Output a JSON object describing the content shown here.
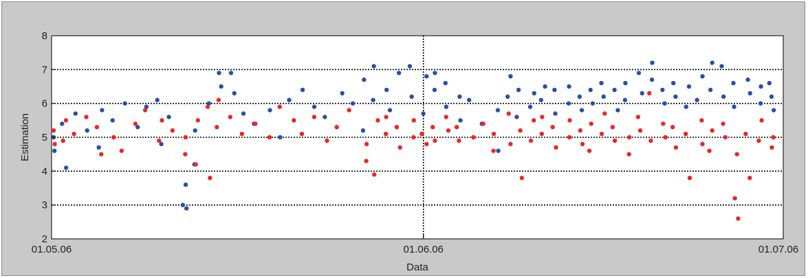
{
  "chart_data": {
    "type": "scatter",
    "title": "",
    "xlabel": "Data",
    "ylabel": "Estimation",
    "x_ticks": [
      "01.05.06",
      "01.06.06",
      "01.07.06"
    ],
    "x_range": [
      "2006-05-01",
      "2006-07-01"
    ],
    "ylim": [
      2,
      8
    ],
    "y_ticks": [
      2,
      3,
      4,
      5,
      6,
      7,
      8
    ],
    "grid": "dotted",
    "legend": "none",
    "series": [
      {
        "color": "#2a4fa8",
        "points": [
          [
            "2006-05-01",
            5.0
          ],
          [
            "2006-05-01",
            4.6
          ],
          [
            "2006-05-02",
            4.1
          ],
          [
            "2006-05-02",
            5.4
          ],
          [
            "2006-05-03",
            5.7
          ],
          [
            "2006-05-04",
            5.2
          ],
          [
            "2006-05-05",
            5.8
          ],
          [
            "2006-05-05",
            4.7
          ],
          [
            "2006-05-06",
            5.5
          ],
          [
            "2006-05-07",
            6.0
          ],
          [
            "2006-05-08",
            5.3
          ],
          [
            "2006-05-09",
            5.9
          ],
          [
            "2006-05-10",
            6.1
          ],
          [
            "2006-05-10",
            4.8
          ],
          [
            "2006-05-11",
            5.6
          ],
          [
            "2006-05-12",
            3.0
          ],
          [
            "2006-05-12",
            2.9
          ],
          [
            "2006-05-12",
            3.6
          ],
          [
            "2006-05-13",
            4.2
          ],
          [
            "2006-05-13",
            5.2
          ],
          [
            "2006-05-14",
            6.0
          ],
          [
            "2006-05-15",
            6.5
          ],
          [
            "2006-05-15",
            6.9
          ],
          [
            "2006-05-16",
            6.3
          ],
          [
            "2006-05-16",
            6.9
          ],
          [
            "2006-05-17",
            5.7
          ],
          [
            "2006-05-18",
            5.4
          ],
          [
            "2006-05-19",
            5.8
          ],
          [
            "2006-05-20",
            5.0
          ],
          [
            "2006-05-21",
            6.1
          ],
          [
            "2006-05-22",
            6.4
          ],
          [
            "2006-05-23",
            5.9
          ],
          [
            "2006-05-24",
            5.6
          ],
          [
            "2006-05-25",
            6.3
          ],
          [
            "2006-05-26",
            6.0
          ],
          [
            "2006-05-27",
            6.7
          ],
          [
            "2006-05-27",
            5.2
          ],
          [
            "2006-05-28",
            6.1
          ],
          [
            "2006-05-28",
            7.1
          ],
          [
            "2006-05-29",
            6.4
          ],
          [
            "2006-05-29",
            5.8
          ],
          [
            "2006-05-30",
            6.9
          ],
          [
            "2006-05-31",
            6.2
          ],
          [
            "2006-05-31",
            7.1
          ],
          [
            "2006-06-01",
            6.8
          ],
          [
            "2006-06-01",
            5.7
          ],
          [
            "2006-06-02",
            6.4
          ],
          [
            "2006-06-02",
            6.9
          ],
          [
            "2006-06-03",
            5.9
          ],
          [
            "2006-06-03",
            6.6
          ],
          [
            "2006-06-04",
            6.2
          ],
          [
            "2006-06-04",
            5.5
          ],
          [
            "2006-06-05",
            6.1
          ],
          [
            "2006-06-06",
            5.4
          ],
          [
            "2006-06-07",
            4.6
          ],
          [
            "2006-06-07",
            5.8
          ],
          [
            "2006-06-08",
            6.2
          ],
          [
            "2006-06-08",
            6.8
          ],
          [
            "2006-06-09",
            6.4
          ],
          [
            "2006-06-09",
            5.6
          ],
          [
            "2006-06-10",
            6.3
          ],
          [
            "2006-06-10",
            5.9
          ],
          [
            "2006-06-11",
            6.5
          ],
          [
            "2006-06-11",
            6.1
          ],
          [
            "2006-06-12",
            5.7
          ],
          [
            "2006-06-12",
            6.4
          ],
          [
            "2006-06-13",
            6.0
          ],
          [
            "2006-06-13",
            6.5
          ],
          [
            "2006-06-14",
            6.2
          ],
          [
            "2006-06-14",
            5.8
          ],
          [
            "2006-06-15",
            6.4
          ],
          [
            "2006-06-15",
            6.0
          ],
          [
            "2006-06-16",
            6.6
          ],
          [
            "2006-06-16",
            6.2
          ],
          [
            "2006-06-17",
            5.8
          ],
          [
            "2006-06-17",
            6.4
          ],
          [
            "2006-06-18",
            6.1
          ],
          [
            "2006-06-18",
            6.6
          ],
          [
            "2006-06-19",
            6.3
          ],
          [
            "2006-06-19",
            6.9
          ],
          [
            "2006-06-20",
            6.7
          ],
          [
            "2006-06-20",
            7.2
          ],
          [
            "2006-06-21",
            6.4
          ],
          [
            "2006-06-21",
            6.0
          ],
          [
            "2006-06-22",
            6.6
          ],
          [
            "2006-06-22",
            6.2
          ],
          [
            "2006-06-23",
            5.9
          ],
          [
            "2006-06-23",
            6.5
          ],
          [
            "2006-06-24",
            6.1
          ],
          [
            "2006-06-24",
            6.8
          ],
          [
            "2006-06-25",
            7.2
          ],
          [
            "2006-06-25",
            6.4
          ],
          [
            "2006-06-26",
            7.1
          ],
          [
            "2006-06-26",
            6.2
          ],
          [
            "2006-06-27",
            6.6
          ],
          [
            "2006-06-27",
            5.9
          ],
          [
            "2006-06-28",
            6.3
          ],
          [
            "2006-06-28",
            6.7
          ],
          [
            "2006-06-29",
            6.0
          ],
          [
            "2006-06-29",
            6.5
          ],
          [
            "2006-06-30",
            6.2
          ],
          [
            "2006-06-30",
            6.6
          ],
          [
            "2006-06-30",
            5.8
          ]
        ]
      },
      {
        "color": "#e8282a",
        "points": [
          [
            "2006-05-01",
            5.2
          ],
          [
            "2006-05-01",
            4.8
          ],
          [
            "2006-05-02",
            5.5
          ],
          [
            "2006-05-02",
            4.9
          ],
          [
            "2006-05-03",
            5.1
          ],
          [
            "2006-05-04",
            5.6
          ],
          [
            "2006-05-05",
            4.5
          ],
          [
            "2006-05-05",
            5.3
          ],
          [
            "2006-05-06",
            5.0
          ],
          [
            "2006-05-07",
            4.6
          ],
          [
            "2006-05-08",
            5.4
          ],
          [
            "2006-05-09",
            5.8
          ],
          [
            "2006-05-10",
            4.9
          ],
          [
            "2006-05-10",
            5.5
          ],
          [
            "2006-05-11",
            5.2
          ],
          [
            "2006-05-12",
            4.5
          ],
          [
            "2006-05-12",
            5.0
          ],
          [
            "2006-05-13",
            5.5
          ],
          [
            "2006-05-13",
            4.2
          ],
          [
            "2006-05-14",
            3.8
          ],
          [
            "2006-05-14",
            5.9
          ],
          [
            "2006-05-15",
            6.1
          ],
          [
            "2006-05-15",
            5.3
          ],
          [
            "2006-05-16",
            5.6
          ],
          [
            "2006-05-17",
            5.1
          ],
          [
            "2006-05-18",
            5.4
          ],
          [
            "2006-05-19",
            5.0
          ],
          [
            "2006-05-20",
            5.9
          ],
          [
            "2006-05-21",
            5.5
          ],
          [
            "2006-05-22",
            5.1
          ],
          [
            "2006-05-23",
            5.6
          ],
          [
            "2006-05-24",
            4.9
          ],
          [
            "2006-05-25",
            5.3
          ],
          [
            "2006-05-26",
            5.8
          ],
          [
            "2006-05-27",
            4.8
          ],
          [
            "2006-05-27",
            4.3
          ],
          [
            "2006-05-28",
            5.5
          ],
          [
            "2006-05-28",
            3.9
          ],
          [
            "2006-05-29",
            5.1
          ],
          [
            "2006-05-29",
            5.6
          ],
          [
            "2006-05-30",
            4.7
          ],
          [
            "2006-05-30",
            5.3
          ],
          [
            "2006-05-31",
            5.0
          ],
          [
            "2006-05-31",
            5.5
          ],
          [
            "2006-06-01",
            5.1
          ],
          [
            "2006-06-01",
            4.8
          ],
          [
            "2006-06-02",
            5.3
          ],
          [
            "2006-06-02",
            4.9
          ],
          [
            "2006-06-03",
            5.2
          ],
          [
            "2006-06-03",
            5.6
          ],
          [
            "2006-06-04",
            4.9
          ],
          [
            "2006-06-04",
            5.3
          ],
          [
            "2006-06-05",
            5.0
          ],
          [
            "2006-06-06",
            5.4
          ],
          [
            "2006-06-07",
            4.6
          ],
          [
            "2006-06-07",
            5.1
          ],
          [
            "2006-06-08",
            5.7
          ],
          [
            "2006-06-08",
            4.8
          ],
          [
            "2006-06-09",
            5.2
          ],
          [
            "2006-06-09",
            3.8
          ],
          [
            "2006-06-10",
            5.5
          ],
          [
            "2006-06-10",
            4.9
          ],
          [
            "2006-06-11",
            5.1
          ],
          [
            "2006-06-11",
            5.6
          ],
          [
            "2006-06-12",
            4.7
          ],
          [
            "2006-06-12",
            5.3
          ],
          [
            "2006-06-13",
            5.0
          ],
          [
            "2006-06-13",
            5.5
          ],
          [
            "2006-06-14",
            4.8
          ],
          [
            "2006-06-14",
            5.2
          ],
          [
            "2006-06-15",
            5.4
          ],
          [
            "2006-06-15",
            4.6
          ],
          [
            "2006-06-16",
            5.1
          ],
          [
            "2006-06-16",
            5.7
          ],
          [
            "2006-06-17",
            4.9
          ],
          [
            "2006-06-17",
            5.3
          ],
          [
            "2006-06-18",
            5.0
          ],
          [
            "2006-06-18",
            4.5
          ],
          [
            "2006-06-19",
            5.2
          ],
          [
            "2006-06-19",
            5.6
          ],
          [
            "2006-06-20",
            6.3
          ],
          [
            "2006-06-20",
            4.9
          ],
          [
            "2006-06-21",
            5.4
          ],
          [
            "2006-06-21",
            5.0
          ],
          [
            "2006-06-22",
            4.7
          ],
          [
            "2006-06-22",
            5.3
          ],
          [
            "2006-06-23",
            3.8
          ],
          [
            "2006-06-23",
            5.1
          ],
          [
            "2006-06-24",
            5.5
          ],
          [
            "2006-06-24",
            4.8
          ],
          [
            "2006-06-25",
            5.2
          ],
          [
            "2006-06-25",
            4.6
          ],
          [
            "2006-06-26",
            5.0
          ],
          [
            "2006-06-26",
            5.4
          ],
          [
            "2006-06-27",
            2.6
          ],
          [
            "2006-06-27",
            3.2
          ],
          [
            "2006-06-27",
            4.5
          ],
          [
            "2006-06-28",
            3.8
          ],
          [
            "2006-06-28",
            5.1
          ],
          [
            "2006-06-29",
            4.9
          ],
          [
            "2006-06-29",
            5.5
          ],
          [
            "2006-06-30",
            5.0
          ],
          [
            "2006-06-30",
            4.7
          ]
        ]
      }
    ]
  }
}
